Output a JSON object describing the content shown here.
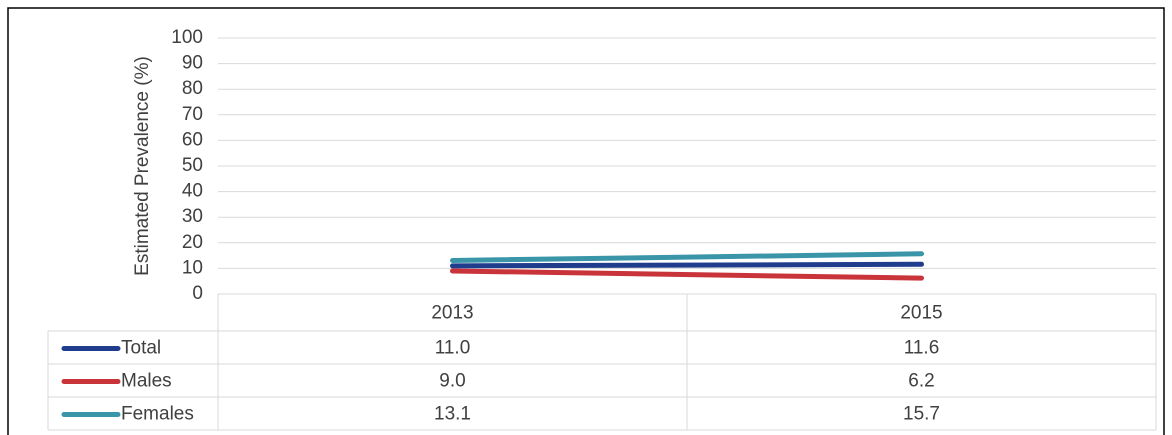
{
  "chart_data": {
    "type": "line",
    "y_label": "Estimated Prevalence (%)",
    "categories": [
      "2013",
      "2015"
    ],
    "series": [
      {
        "name": "Total",
        "color": "#1f3d8c",
        "values": [
          11.0,
          11.6
        ],
        "value_labels": [
          "11.0",
          "11.6"
        ]
      },
      {
        "name": "Males",
        "color": "#c9343b",
        "values": [
          9.0,
          6.2
        ],
        "value_labels": [
          "9.0",
          "6.2"
        ]
      },
      {
        "name": "Females",
        "color": "#3a95a8",
        "values": [
          13.1,
          15.7
        ],
        "value_labels": [
          "13.1",
          "15.7"
        ]
      }
    ],
    "ylim": [
      0,
      100
    ],
    "yticks": [
      0,
      10,
      20,
      30,
      40,
      50,
      60,
      70,
      80,
      90,
      100
    ],
    "grid": true
  }
}
